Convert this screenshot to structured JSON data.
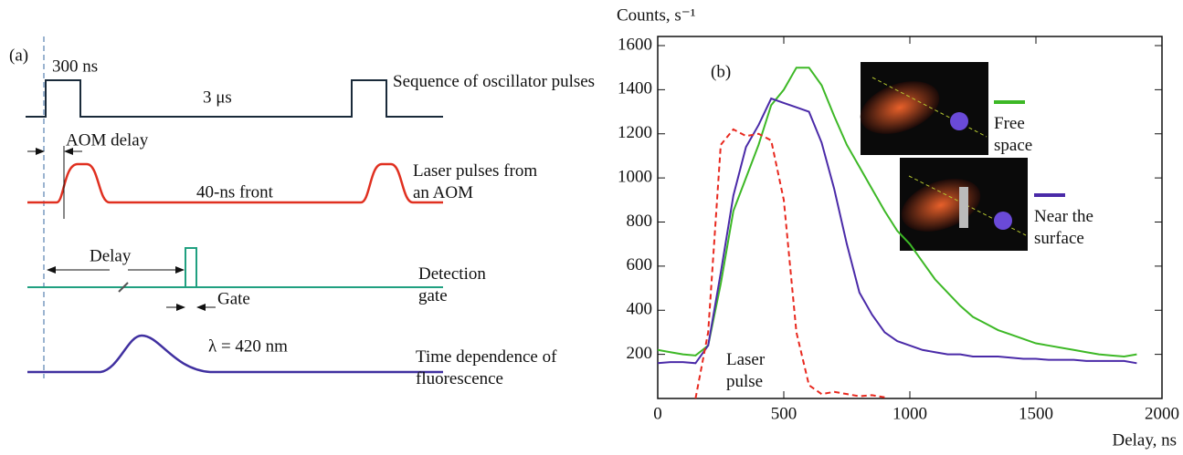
{
  "diagram": {
    "panel_label": "(a)",
    "pulse_width": "300 ns",
    "period": "3 μs",
    "oscillator_label": "Sequence of oscillator pulses",
    "aom_delay": "AOM delay",
    "front": "40-ns front",
    "laser_label": "Laser pulses from an AOM",
    "delay": "Delay",
    "gate": "Gate",
    "detection_label": "Detection gate",
    "wavelength": "λ = 420 nm",
    "fluorescence_label": "Time dependence of fluorescence"
  },
  "chart_data": {
    "type": "line",
    "panel_label": "(b)",
    "y_label": "Counts, s⁻¹",
    "x_label": "Delay, ns",
    "annotation": "Laser pulse",
    "xlim": [
      0,
      2000
    ],
    "xticks": [
      0,
      500,
      1000,
      1500,
      2000
    ],
    "ylim": [
      0,
      1600
    ],
    "yticks": [
      200,
      400,
      600,
      800,
      1000,
      1200,
      1400,
      1600
    ],
    "grid": false,
    "series": [
      {
        "name": "Free space",
        "color": "#3db826",
        "x": [
          0,
          50,
          100,
          150,
          200,
          250,
          300,
          350,
          400,
          450,
          500,
          550,
          600,
          650,
          700,
          750,
          800,
          850,
          900,
          950,
          1000,
          1050,
          1100,
          1150,
          1200,
          1250,
          1300,
          1350,
          1400,
          1450,
          1500,
          1550,
          1600,
          1650,
          1700,
          1750,
          1800,
          1850,
          1900
        ],
        "values": [
          220,
          210,
          200,
          195,
          240,
          520,
          850,
          1000,
          1150,
          1330,
          1400,
          1500,
          1500,
          1420,
          1280,
          1150,
          1050,
          950,
          850,
          760,
          700,
          620,
          540,
          480,
          420,
          370,
          340,
          310,
          290,
          270,
          250,
          240,
          230,
          220,
          210,
          200,
          195,
          190,
          200
        ]
      },
      {
        "name": "Near the surface",
        "color": "#4a2aa8",
        "x": [
          0,
          50,
          100,
          150,
          200,
          250,
          300,
          350,
          400,
          450,
          500,
          550,
          600,
          650,
          700,
          750,
          800,
          850,
          900,
          950,
          1000,
          1050,
          1100,
          1150,
          1200,
          1250,
          1300,
          1350,
          1400,
          1450,
          1500,
          1550,
          1600,
          1650,
          1700,
          1750,
          1800,
          1850,
          1900
        ],
        "values": [
          160,
          165,
          165,
          160,
          240,
          570,
          920,
          1140,
          1240,
          1360,
          1340,
          1320,
          1300,
          1160,
          950,
          700,
          480,
          380,
          300,
          260,
          240,
          220,
          210,
          200,
          200,
          190,
          190,
          190,
          185,
          180,
          180,
          175,
          175,
          175,
          170,
          170,
          170,
          170,
          160
        ]
      },
      {
        "color": "#e8281e",
        "dashed": true,
        "x": [
          150,
          200,
          250,
          300,
          350,
          400,
          450,
          500,
          550,
          600,
          650,
          700,
          750,
          800,
          850,
          900
        ],
        "values": [
          0,
          300,
          1150,
          1220,
          1190,
          1200,
          1170,
          900,
          300,
          60,
          20,
          30,
          20,
          10,
          15,
          5
        ]
      }
    ]
  }
}
